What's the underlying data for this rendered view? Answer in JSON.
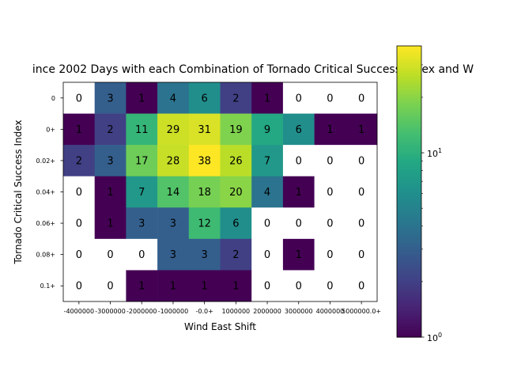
{
  "chart_data": {
    "type": "heatmap",
    "title": "ince 2002 Days with each Combination of Tornado Critical Success Index and W",
    "xlabel": "Wind East Shift",
    "ylabel": "Tornado Critical Success Index",
    "x_categories": [
      "-4000000",
      "-3000000",
      "-2000000",
      "-1000000",
      "-0.0+",
      "1000000",
      "2000000",
      "3000000",
      "4000000",
      "5000000.0+"
    ],
    "x_tick_labels": [
      "-4000000",
      "-3000000",
      "-2000000",
      "-1000000",
      "-0.0+",
      "1000000",
      "2000000",
      "3000000",
      "4000000",
      "5000000.0+"
    ],
    "y_categories": [
      "0",
      "0+",
      "0.02+",
      "0.04+",
      "0.06+",
      "0.08+",
      "0.1+"
    ],
    "values": [
      [
        0,
        3,
        1,
        4,
        6,
        2,
        1,
        0,
        0,
        0
      ],
      [
        1,
        2,
        11,
        29,
        31,
        19,
        9,
        6,
        1,
        1
      ],
      [
        2,
        3,
        17,
        28,
        38,
        26,
        7,
        0,
        0,
        0
      ],
      [
        0,
        1,
        7,
        14,
        18,
        20,
        4,
        1,
        0,
        0
      ],
      [
        0,
        1,
        3,
        3,
        12,
        6,
        0,
        0,
        0,
        0
      ],
      [
        0,
        0,
        0,
        3,
        3,
        2,
        0,
        1,
        0,
        0
      ],
      [
        0,
        0,
        1,
        1,
        1,
        1,
        0,
        0,
        0,
        0
      ]
    ],
    "color_scale": "log",
    "colormap": "viridis",
    "colorbar": {
      "min": 1,
      "max": 38,
      "tick_labels": [
        "10^0",
        "10^1"
      ],
      "tick_values": [
        1,
        10
      ]
    },
    "zero_color": "#ffffff",
    "grid": false
  }
}
